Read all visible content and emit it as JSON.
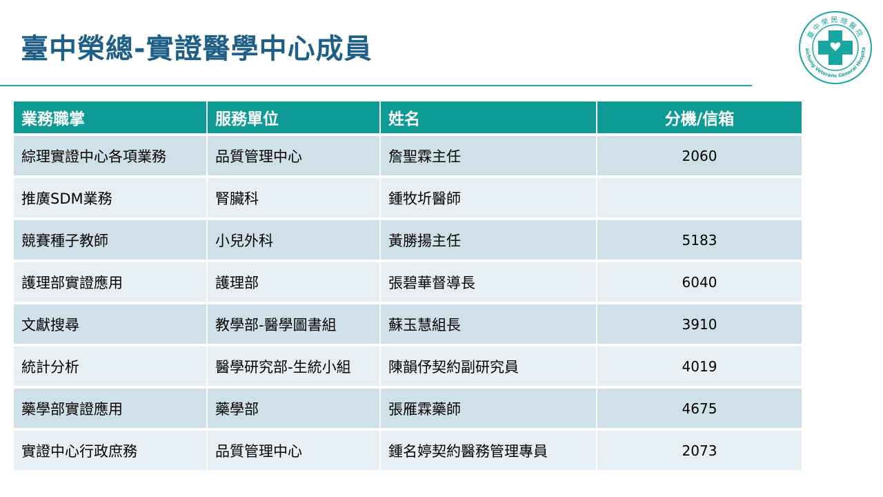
{
  "slide": {
    "title": "臺中榮總-實證醫學中心成員"
  },
  "logo": {
    "arc_text_top": "臺中榮民總醫院",
    "arc_text_bottom": "Taichung Veterans General Hospital",
    "colors": {
      "ring": "#1aa6a0",
      "cross": "#1aa6a0"
    }
  },
  "table": {
    "headers": [
      "業務職掌",
      "服務單位",
      "姓名",
      "分機/信箱"
    ],
    "rows": [
      [
        "綜理實證中心各項業務",
        "品質管理中心",
        "詹聖霖主任",
        "2060"
      ],
      [
        "推廣SDM業務",
        "腎臟科",
        "鍾牧圻醫師",
        ""
      ],
      [
        "競賽種子教師",
        "小兒外科",
        "黃勝揚主任",
        "5183"
      ],
      [
        "護理部實證應用",
        "護理部",
        "張碧華督導長",
        "6040"
      ],
      [
        "文獻搜尋",
        "教學部-醫學圖書組",
        "蘇玉慧組長",
        "3910"
      ],
      [
        "統計分析",
        "醫學研究部-生統小組",
        "陳韻伃契約副研究員",
        "4019"
      ],
      [
        "藥學部實證應用",
        "藥學部",
        "張雁霖藥師",
        "4675"
      ],
      [
        "實證中心行政庶務",
        "品質管理中心",
        "鍾名婷契約醫務管理專員",
        "2073"
      ]
    ]
  },
  "colors": {
    "title": "#1f5f86",
    "header_bg": "#0f9b95",
    "row_odd": "#cfe0e8",
    "row_even": "#e7eff3",
    "rule": "#1aa6a0"
  }
}
